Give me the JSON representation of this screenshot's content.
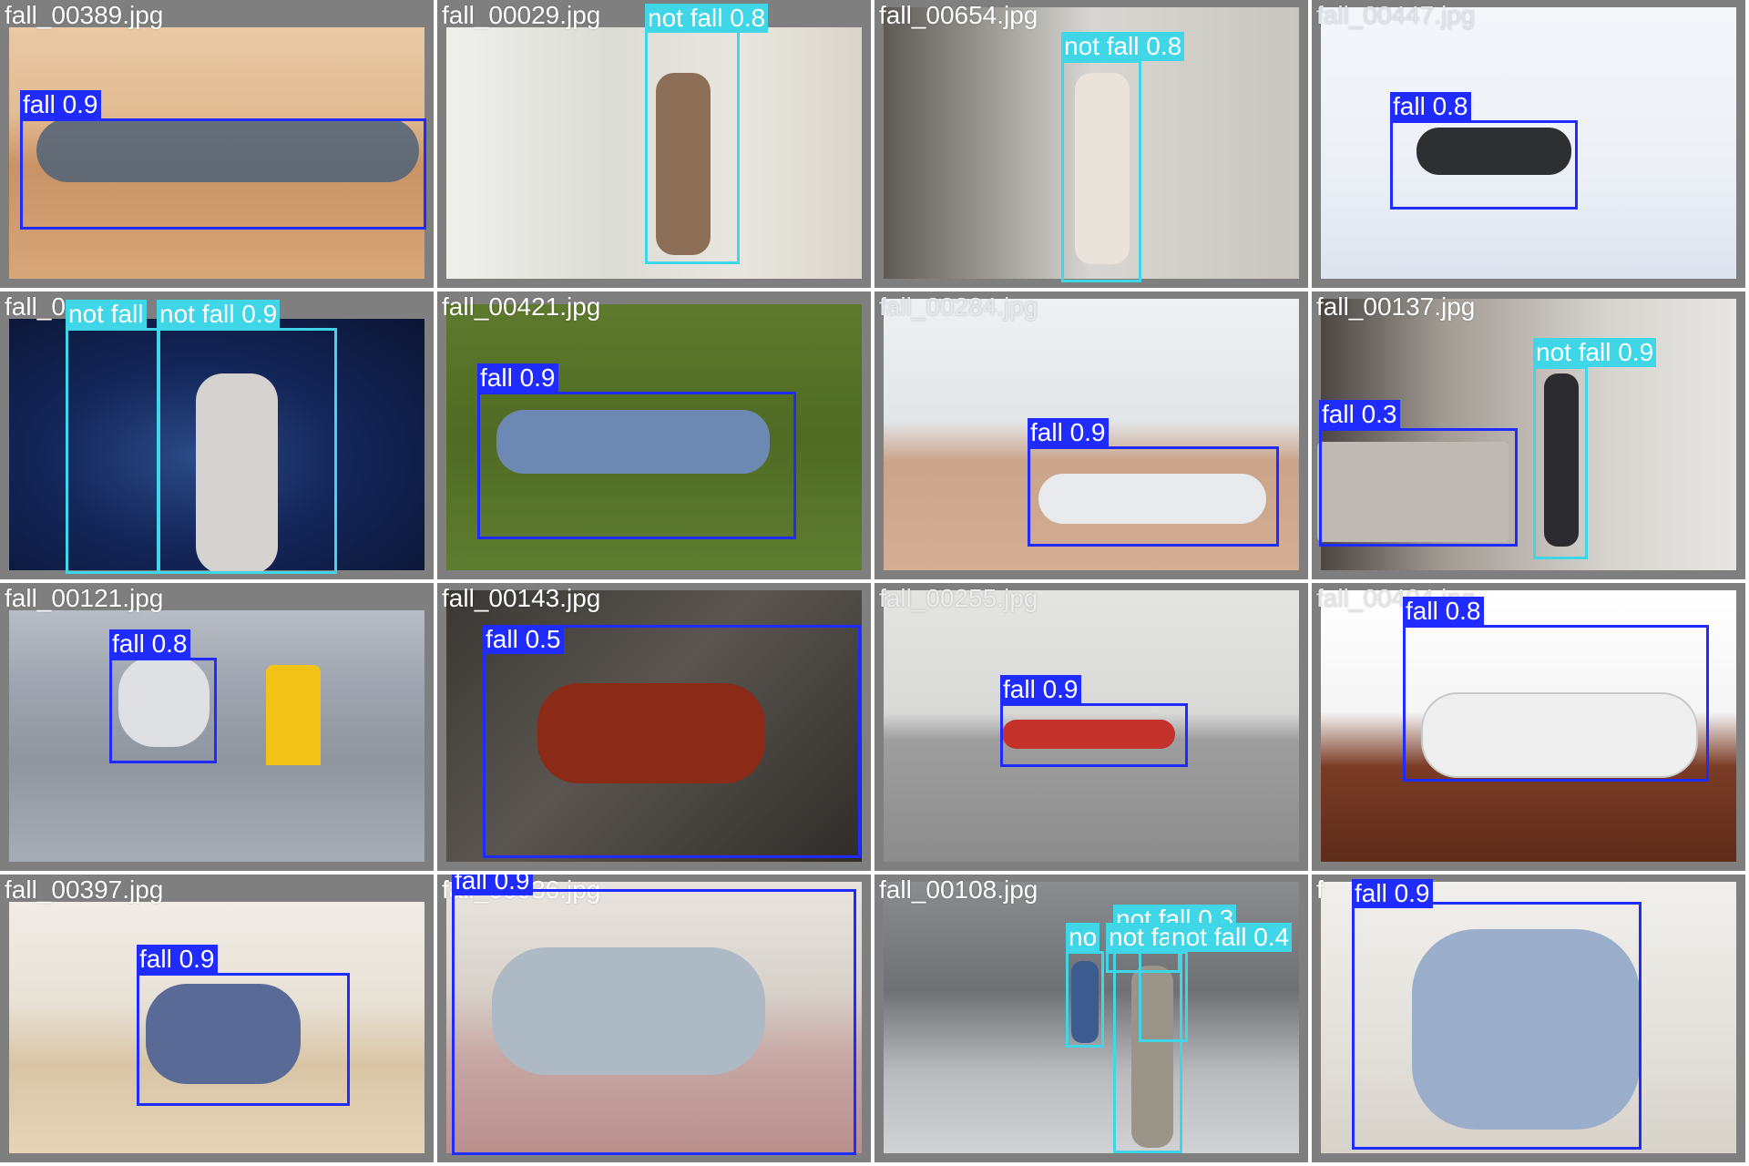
{
  "colors": {
    "fall": "#1f2bff",
    "not_fall": "#3fd6e8",
    "tile_bg": "#7f7f7f"
  },
  "tiles": [
    {
      "name": "fall_00389.jpg",
      "labels": [
        "fall 0.9"
      ]
    },
    {
      "name": "fall_00029.jpg",
      "labels": [
        "not fall 0.8"
      ]
    },
    {
      "name": "fall_00654.jpg",
      "labels": [
        "not fall 0.8"
      ]
    },
    {
      "name": "fall_00447.jpg",
      "labels": [
        "fall 0.8"
      ]
    },
    {
      "name": "fall_0",
      "labels": [
        "not fall",
        "not fall 0.9"
      ]
    },
    {
      "name": "fall_00421.jpg",
      "labels": [
        "fall 0.9"
      ]
    },
    {
      "name": "fall_00284.jpg",
      "labels": [
        "fall 0.9"
      ]
    },
    {
      "name": "fall_00137.jpg",
      "labels": [
        "not fall 0.9",
        "fall 0.3"
      ]
    },
    {
      "name": "fall_00121.jpg",
      "labels": [
        "fall 0.8"
      ]
    },
    {
      "name": "fall_00143.jpg",
      "labels": [
        "fall 0.5"
      ]
    },
    {
      "name": "fall_00255.jpg",
      "labels": [
        "fall 0.9"
      ]
    },
    {
      "name": "fall_00404.jpg",
      "labels": [
        "fall 0.8"
      ]
    },
    {
      "name": "fall_00397.jpg",
      "labels": [
        "fall 0.9"
      ]
    },
    {
      "name": "fall_00036.jpg",
      "labels": [
        "fall 0.9"
      ]
    },
    {
      "name": "fall_00108.jpg",
      "labels": [
        "not fall 0.3",
        "not fall 0.3",
        "not fall 0.4",
        "no"
      ]
    },
    {
      "name": "f",
      "labels": [
        "fall 0.9"
      ]
    }
  ]
}
